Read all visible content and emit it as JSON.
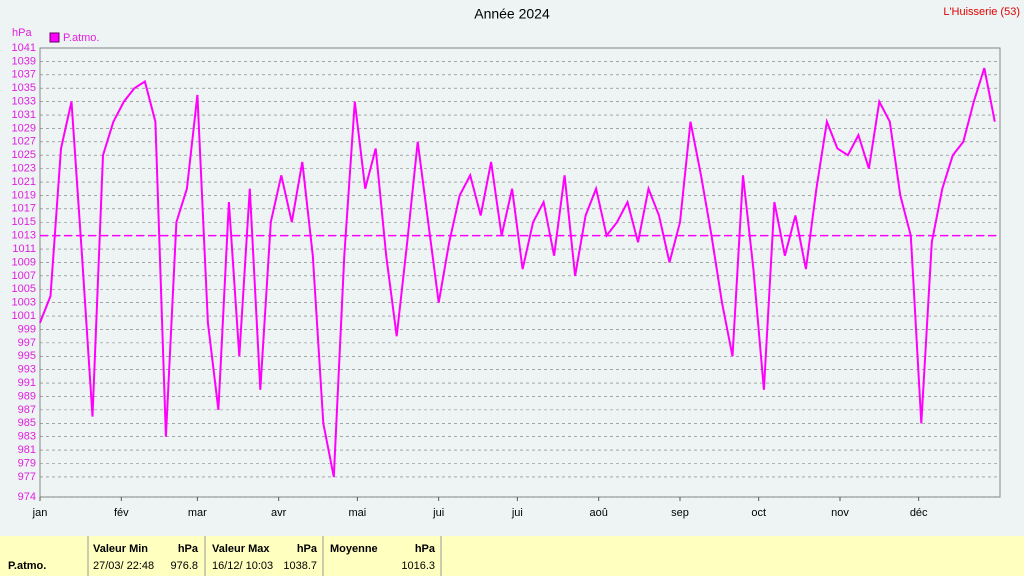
{
  "chart_data": {
    "type": "line",
    "title": "Année 2024",
    "subtitle": "L'Huisserie (53)",
    "y_label": "hPa",
    "x": [
      0,
      4,
      8,
      12,
      16,
      20,
      24,
      28,
      32,
      36,
      40,
      44,
      48,
      52,
      56,
      60,
      64,
      68,
      72,
      76,
      80,
      84,
      88,
      92,
      96,
      100,
      104,
      108,
      112,
      116,
      120,
      124,
      128,
      132,
      136,
      140,
      144,
      148,
      152,
      156,
      160,
      164,
      168,
      172,
      176,
      180,
      184,
      188,
      192,
      196,
      200,
      204,
      208,
      212,
      216,
      220,
      224,
      228,
      232,
      236,
      240,
      244,
      248,
      252,
      256,
      260,
      264,
      268,
      272,
      276,
      280,
      284,
      288,
      292,
      296,
      300,
      304,
      308,
      312,
      316,
      320,
      324,
      328,
      332,
      336,
      340,
      344,
      348,
      352,
      356,
      360,
      364
    ],
    "series": [
      {
        "name": "P.atmo.",
        "color": "#ff00ff",
        "values": [
          1000,
          1004,
          1026,
          1033,
          1010,
          986,
          1025,
          1030,
          1033,
          1035,
          1036,
          1030,
          983,
          1015,
          1020,
          1034,
          1000,
          987,
          1018,
          995,
          1020,
          990,
          1015,
          1022,
          1015,
          1024,
          1010,
          985,
          977,
          1010,
          1033,
          1020,
          1026,
          1010,
          998,
          1012,
          1027,
          1015,
          1003,
          1012,
          1019,
          1022,
          1016,
          1024,
          1013,
          1020,
          1008,
          1015,
          1018,
          1010,
          1022,
          1007,
          1016,
          1020,
          1013,
          1015,
          1018,
          1012,
          1020,
          1016,
          1009,
          1015,
          1030,
          1022,
          1013,
          1003,
          995,
          1022,
          1008,
          990,
          1018,
          1010,
          1016,
          1008,
          1020,
          1030,
          1026,
          1025,
          1028,
          1023,
          1033,
          1030,
          1019,
          1013,
          985,
          1012,
          1020,
          1025,
          1027,
          1033,
          1038,
          1030
        ]
      }
    ],
    "reference_line": 1013,
    "xlim": [
      0,
      366
    ],
    "xticks": [
      {
        "value": 0,
        "label": "jan"
      },
      {
        "value": 31,
        "label": "fév"
      },
      {
        "value": 60,
        "label": "mar"
      },
      {
        "value": 91,
        "label": "avr"
      },
      {
        "value": 121,
        "label": "mai"
      },
      {
        "value": 152,
        "label": "jui"
      },
      {
        "value": 182,
        "label": "jui"
      },
      {
        "value": 213,
        "label": "aoû"
      },
      {
        "value": 244,
        "label": "sep"
      },
      {
        "value": 274,
        "label": "oct"
      },
      {
        "value": 305,
        "label": "nov"
      },
      {
        "value": 335,
        "label": "déc"
      }
    ],
    "ylim": [
      974,
      1041
    ],
    "yticks": [
      974,
      977,
      979,
      981,
      983,
      985,
      987,
      989,
      991,
      993,
      995,
      997,
      999,
      1001,
      1003,
      1005,
      1007,
      1009,
      1011,
      1013,
      1015,
      1017,
      1019,
      1021,
      1023,
      1025,
      1027,
      1029,
      1031,
      1033,
      1035,
      1037,
      1039,
      1041
    ],
    "grid": true
  },
  "summary": {
    "series": "P.atmo.",
    "min": {
      "header": "Valeur Min",
      "unit": "hPa",
      "date": "27/03/  22:48",
      "value": "976.8"
    },
    "max": {
      "header": "Valeur Max",
      "unit": "hPa",
      "date": "16/12/  10:03",
      "value": "1038.7"
    },
    "mean": {
      "header": "Moyenne",
      "unit": "hPa",
      "value": "1016.3"
    }
  }
}
